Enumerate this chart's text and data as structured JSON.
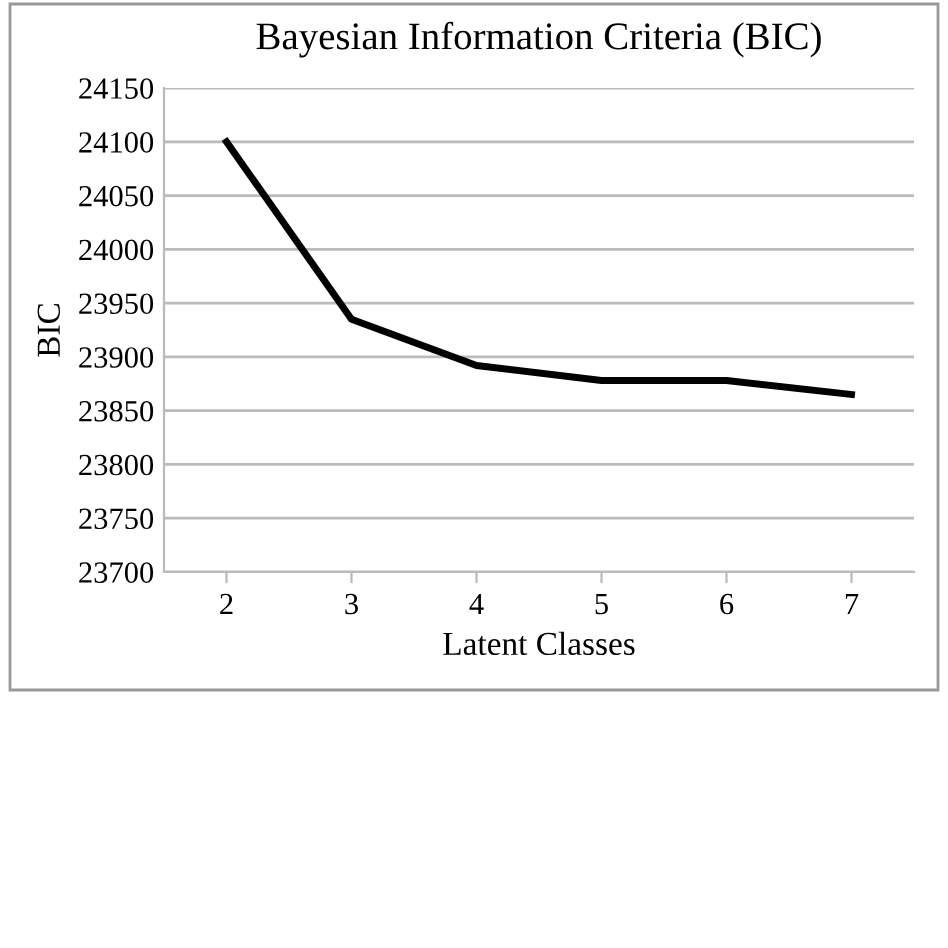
{
  "chart_data": {
    "type": "line",
    "title": "Bayesian Information Criteria (BIC)",
    "xlabel": "Latent Classes",
    "ylabel": "BIC",
    "categories": [
      "2",
      "3",
      "4",
      "5",
      "6",
      "7"
    ],
    "series": [
      {
        "color": "#000000",
        "values": [
          24100,
          23935,
          23892,
          23878,
          23878,
          23865
        ]
      }
    ],
    "ylim": [
      23700,
      24150
    ],
    "yticks": [
      23700,
      23750,
      23800,
      23850,
      23900,
      23950,
      24000,
      24050,
      24100,
      24150
    ],
    "grid": "y",
    "legend": false,
    "marker": "none",
    "line_style": "solid"
  }
}
